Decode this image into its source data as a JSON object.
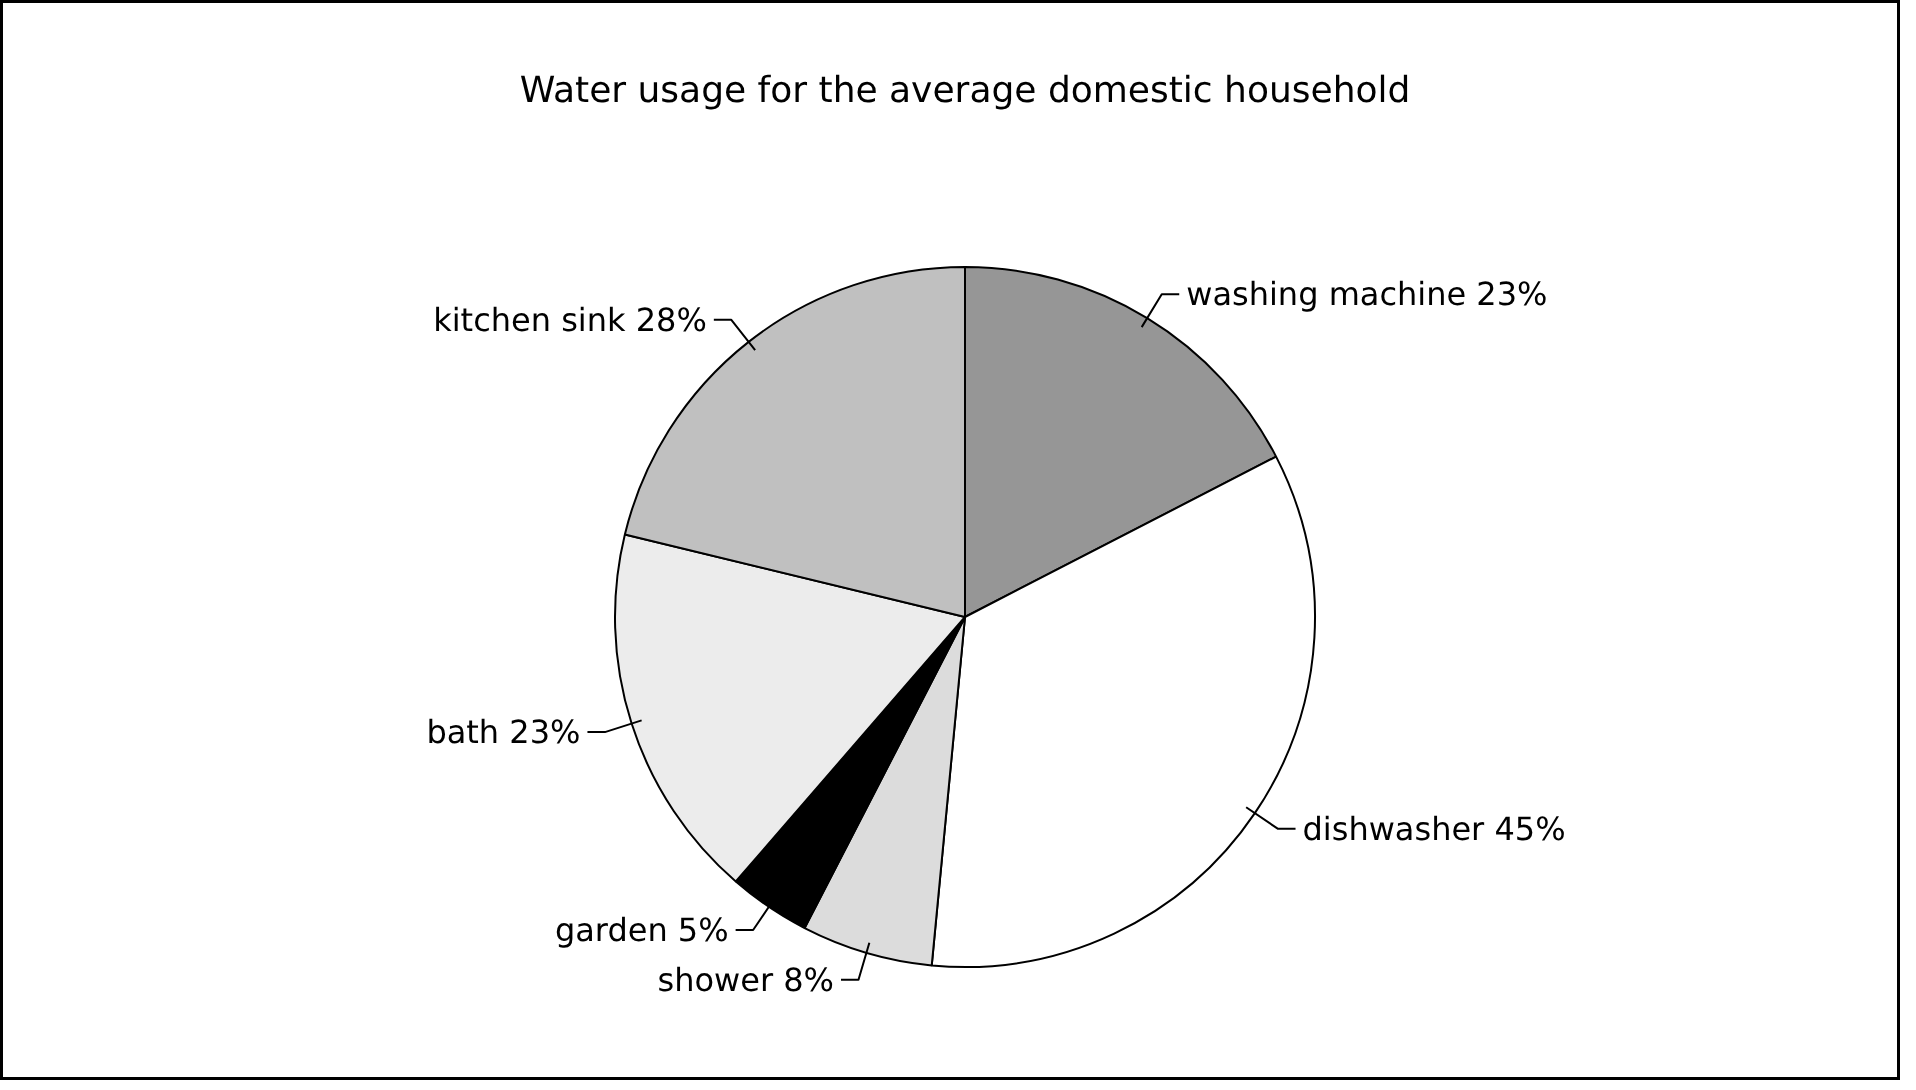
{
  "chart_data": {
    "type": "pie",
    "title": "Water usage for the average domestic household",
    "categories": [
      "washing machine",
      "dishwasher",
      "shower",
      "garden",
      "bath",
      "kitchen sink"
    ],
    "values": [
      23,
      45,
      8,
      5,
      23,
      28
    ],
    "value_labels": [
      "23%",
      "45%",
      "8%",
      "5%",
      "23%",
      "28%"
    ],
    "colors": [
      "#969696",
      "#ffffff",
      "#dcdcdc",
      "#000000",
      "#ececec",
      "#c0c0c0"
    ]
  }
}
